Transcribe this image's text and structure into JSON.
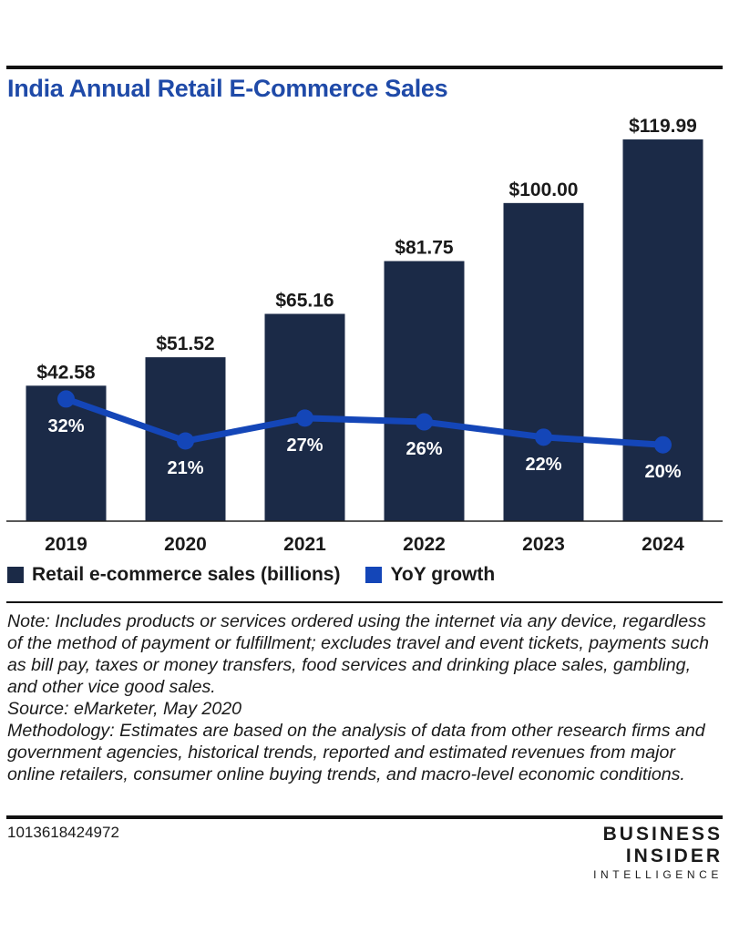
{
  "title": "India Annual Retail E-Commerce Sales",
  "colors": {
    "bar": "#1b2a47",
    "line": "#1446b8",
    "title": "#1f4aa8"
  },
  "chart_data": {
    "type": "bar",
    "title": "India Annual Retail E-Commerce Sales",
    "categories": [
      "2019",
      "2020",
      "2021",
      "2022",
      "2023",
      "2024"
    ],
    "series": [
      {
        "name": "Retail e-commerce sales (billions)",
        "type": "bar",
        "values": [
          42.58,
          51.52,
          65.16,
          81.75,
          100.0,
          119.99
        ],
        "labels": [
          "$42.58",
          "$51.52",
          "$65.16",
          "$81.75",
          "$100.00",
          "$119.99"
        ]
      },
      {
        "name": "YoY growth",
        "type": "line",
        "values": [
          32,
          21,
          27,
          26,
          22,
          20
        ],
        "labels": [
          "32%",
          "21%",
          "27%",
          "26%",
          "22%",
          "20%"
        ]
      }
    ],
    "ylim": [
      0,
      120
    ],
    "growth_range": [
      0,
      100
    ],
    "grid": false,
    "legend": "bottom-left"
  },
  "legend": {
    "bar_label": "Retail e-commerce sales (billions)",
    "line_label": "YoY growth"
  },
  "notes": {
    "note": "Note: Includes products or services ordered using the internet via any device, regardless of the method of payment or fulfillment; excludes travel and event tickets, payments such as bill pay, taxes or money transfers, food services and drinking place sales, gambling, and other vice good sales.",
    "source": "Source: eMarketer, May 2020",
    "methodology": "Methodology: Estimates are based on the analysis of data from other research firms and government agencies, historical trends, reported and estimated revenues from major online retailers, consumer online buying trends, and macro-level economic conditions."
  },
  "chart_id": "1013618424972",
  "brand": {
    "line1": "BUSINESS",
    "line2": "INSIDER",
    "line3": "INTELLIGENCE"
  }
}
